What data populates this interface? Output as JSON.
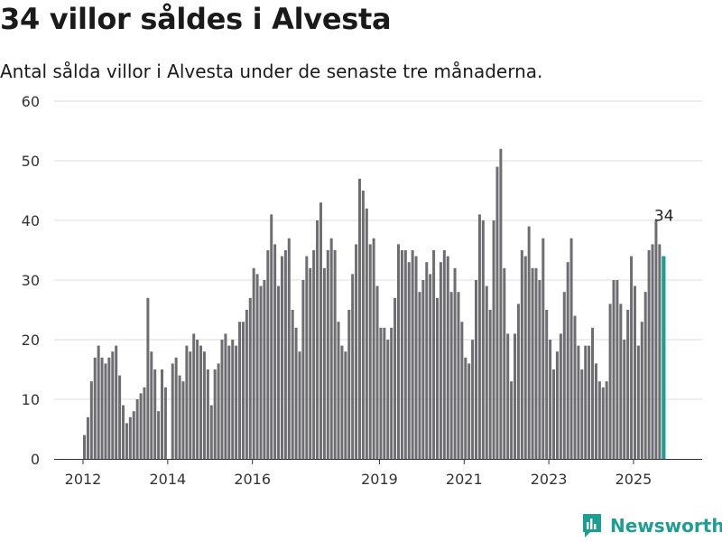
{
  "title": "34 villor såldes i Alvesta",
  "subtitle": "Antal sålda villor i Alvesta under de senaste tre månaderna.",
  "brand": "Newsworthy",
  "colors": {
    "bar": "#6e6d72",
    "highlight": "#1e9e93",
    "grid": "#dedede",
    "axis": "#333333"
  },
  "chart_data": {
    "type": "bar",
    "x_start": "2012-01",
    "x_labels": [
      "2012",
      "2014",
      "2016",
      "2019",
      "2021",
      "2023",
      "2025"
    ],
    "y_ticks": [
      0,
      10,
      20,
      30,
      40,
      50,
      60
    ],
    "ylim": [
      0,
      60
    ],
    "grid": true,
    "highlight_label": "34",
    "values": [
      4,
      7,
      13,
      17,
      19,
      17,
      16,
      17,
      18,
      19,
      14,
      9,
      6,
      7,
      8,
      10,
      11,
      12,
      27,
      18,
      15,
      8,
      15,
      12,
      0,
      16,
      17,
      14,
      13,
      19,
      18,
      21,
      20,
      19,
      18,
      15,
      9,
      15,
      16,
      20,
      21,
      19,
      20,
      19,
      23,
      23,
      25,
      27,
      32,
      31,
      29,
      30,
      35,
      41,
      36,
      29,
      34,
      35,
      37,
      25,
      22,
      18,
      30,
      34,
      32,
      35,
      40,
      43,
      32,
      35,
      37,
      35,
      23,
      19,
      18,
      25,
      31,
      36,
      47,
      45,
      42,
      36,
      37,
      29,
      22,
      22,
      20,
      22,
      27,
      36,
      35,
      35,
      33,
      35,
      34,
      28,
      30,
      33,
      31,
      35,
      27,
      33,
      35,
      34,
      28,
      32,
      28,
      23,
      17,
      16,
      20,
      30,
      41,
      40,
      29,
      25,
      40,
      49,
      52,
      32,
      21,
      13,
      21,
      26,
      35,
      34,
      39,
      32,
      32,
      30,
      37,
      25,
      20,
      15,
      18,
      21,
      28,
      33,
      37,
      24,
      19,
      15,
      19,
      19,
      22,
      16,
      13,
      12,
      13,
      26,
      30,
      30,
      26,
      20,
      25,
      34,
      29,
      19,
      23,
      28,
      35,
      36,
      40,
      36,
      34
    ]
  }
}
